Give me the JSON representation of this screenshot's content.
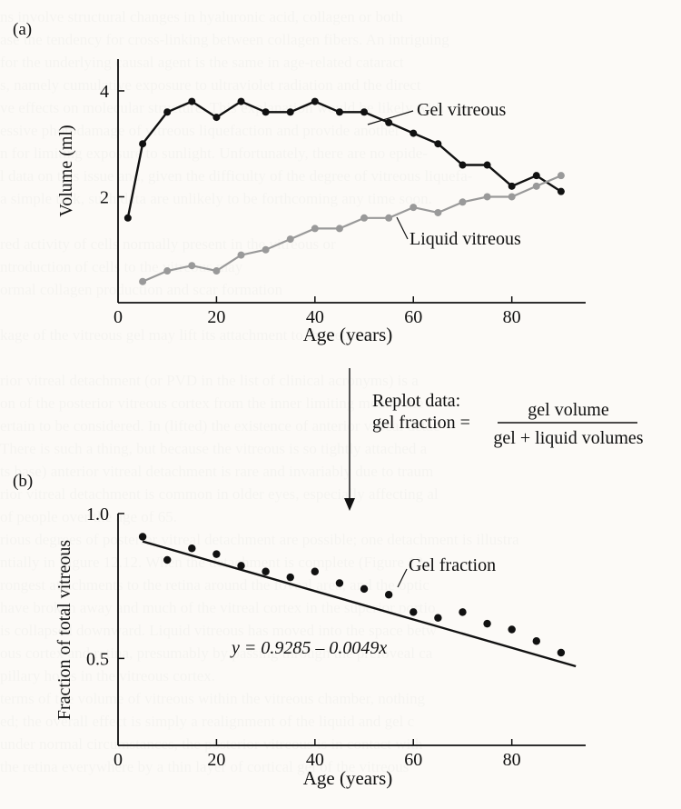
{
  "panel_a_label": "(a)",
  "panel_b_label": "(b)",
  "replot": {
    "line1": "Replot data:",
    "line2": "gel fraction =",
    "numerator": "gel volume",
    "denominator": "gel + liquid volumes"
  },
  "background_text_lines": [
    "ns involve structural changes in hyaluronic acid, collagen or both",
    "ase the tendency for cross-linking between collagen fibers. An intriguing",
    "for the underlying causal agent is the same in age-related cataract",
    "s, namely cumulative exposure to ultraviolet radiation and the direct",
    "ve effects on molecular structure. This explanation would be likely with",
    "essive photodamage of vitreous liquefaction and provide another",
    "n for limiting exposure to sunlight. Unfortunately, there are no epide-",
    "l data on this issue and, given the difficulty of the degree of vitreous liquefa-",
    "a simple task, such data are unlikely to be forthcoming any time soon.",
    "",
    "red activity of cells normally present in the vitreous or",
    "ntroduction of cells to the vitreous may",
    "ormal collagen production and scar formation",
    "",
    "kage of the vitreous gel may lift its attachment to the retina",
    "",
    "rior vitreal detachment (or PVD in the list of clinical acronyms) is a",
    "on of the posterior vitreous cortex from the inner limiting membrane o",
    "ertain to be considered. In (lifted) the existence of anterior vitreal detac",
    "There is such a thing, but because the vitreous is so tightly attached a",
    "ts base) anterior vitreal detachment is rare and invariably due to traum",
    "rior vitreal detachment is common in older eyes, especially affecting al",
    "of people over the age of 65.",
    "rious degrees of posterior vitreal detachment are possible; one detachment is illustra",
    "ntially in Figure 12.12. When the detachment is complete (Figure 12.",
    "rongest attachments to the retina around the foveal area, and the optic",
    "have broken away and much of the vitreal cortex in the superior portio",
    "is collapsed downward. Liquid vitreous has moved into the space betw",
    "ous cortex and retina, presumably by passing through the prefoveal ca",
    "pillary holes in the vitreous cortex.",
    "terms of the volume of vitreous within the vitreous chamber, nothing",
    "ed; the overall effect is simply a realignment of the liquid and gel c",
    "under normal circumstances, the posterior vitreous is in contact with",
    "the retina everywhere by a thin layer of cortical gel of the vitreous"
  ],
  "chart_data": [
    {
      "type": "line",
      "xlabel": "Age (years)",
      "ylabel": "Volume (ml)",
      "xlim": [
        0,
        95
      ],
      "ylim": [
        0,
        4.6
      ],
      "xticks": [
        "0",
        "20",
        "40",
        "60",
        "80"
      ],
      "yticks": [
        "2",
        "4"
      ],
      "series": [
        {
          "name": "Gel vitreous",
          "color": "#111111",
          "x": [
            2,
            5,
            10,
            15,
            20,
            25,
            30,
            35,
            40,
            45,
            50,
            55,
            60,
            65,
            70,
            75,
            80,
            85,
            90
          ],
          "y": [
            1.6,
            3.0,
            3.6,
            3.8,
            3.5,
            3.8,
            3.6,
            3.6,
            3.8,
            3.6,
            3.6,
            3.4,
            3.2,
            3.0,
            2.6,
            2.6,
            2.2,
            2.4,
            2.1
          ]
        },
        {
          "name": "Liquid vitreous",
          "color": "#999999",
          "x": [
            5,
            10,
            15,
            20,
            25,
            30,
            35,
            40,
            45,
            50,
            55,
            60,
            65,
            70,
            75,
            80,
            85,
            90
          ],
          "y": [
            0.4,
            0.6,
            0.7,
            0.6,
            0.9,
            1.0,
            1.2,
            1.4,
            1.4,
            1.6,
            1.6,
            1.8,
            1.7,
            1.9,
            2.0,
            2.0,
            2.2,
            2.4
          ]
        }
      ]
    },
    {
      "type": "scatter",
      "xlabel": "Age (years)",
      "ylabel": "Fraction of total vitreous",
      "xlim": [
        0,
        95
      ],
      "ylim": [
        0.2,
        1.0
      ],
      "xticks": [
        "0",
        "20",
        "40",
        "60",
        "80"
      ],
      "yticks": [
        "0.5",
        "1.0"
      ],
      "equation": "y = 0.9285 – 0.0049x",
      "series": [
        {
          "name": "Gel fraction",
          "color": "#111111",
          "x": [
            5,
            10,
            15,
            20,
            25,
            30,
            35,
            40,
            45,
            50,
            55,
            60,
            65,
            70,
            75,
            80,
            85,
            90
          ],
          "y": [
            0.92,
            0.84,
            0.88,
            0.86,
            0.82,
            0.8,
            0.78,
            0.8,
            0.76,
            0.74,
            0.72,
            0.66,
            0.64,
            0.66,
            0.62,
            0.6,
            0.56,
            0.52
          ]
        }
      ],
      "fit": {
        "x": [
          5,
          93
        ],
        "y": [
          0.904,
          0.473
        ]
      }
    }
  ]
}
